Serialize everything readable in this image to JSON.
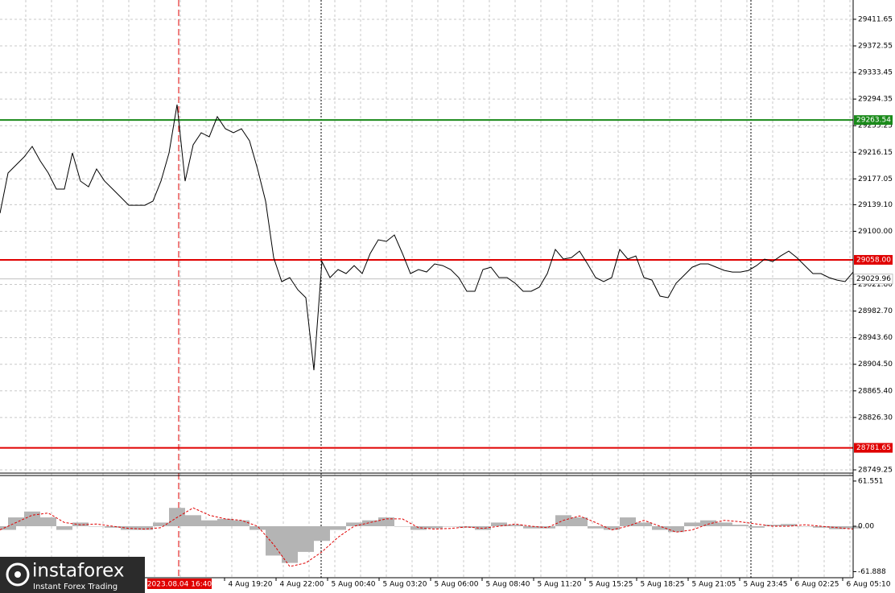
{
  "chart_data": [
    {
      "type": "line",
      "color": "#000000",
      "values": [
        29126.5,
        29185.7,
        29197.5,
        29209.3,
        29224.7,
        29203.4,
        29185.7,
        29162.0,
        29162.0,
        29215.2,
        29173.8,
        29165.5,
        29191.6,
        29173.8,
        29162.0,
        29150.2,
        29138.3,
        29138.3,
        29138.3,
        29144.3,
        29173.8,
        29215.2,
        29286.2,
        29173.8,
        29227.1,
        29244.8,
        29238.9,
        29268.5,
        29250.7,
        29244.8,
        29250.7,
        29233.0,
        29191.6,
        29144.3,
        29061.4,
        29026.0,
        29031.9,
        29014.1,
        29002.3,
        28895.8,
        29055.5,
        29031.9,
        29043.7,
        29037.8,
        29049.6,
        29037.8,
        29067.4,
        29087.5,
        29085.1,
        29094.6,
        29067.4,
        29037.8,
        29043.7,
        29040.2,
        29052.0,
        29049.6,
        29043.7,
        29031.9,
        29011.8,
        29011.8,
        29043.7,
        29047.2,
        29031.9,
        29031.9,
        29023.6,
        29011.8,
        29011.8,
        29017.7,
        29037.8,
        29073.3,
        29059.1,
        29061.4,
        29070.9,
        29052.0,
        29031.9,
        29026.0,
        29031.9,
        29073.3,
        29059.1,
        29063.8,
        29031.9,
        29028.3,
        29004.7,
        29002.3,
        29023.6,
        29035.4,
        29047.2,
        29052.0,
        29052.0,
        29047.2,
        29042.5,
        29040.1,
        29040.1,
        29042.5,
        29049.6,
        29059.1,
        29055.5,
        29063.8,
        29070.9,
        29061.4,
        29049.6,
        29037.8,
        29037.8,
        29031.9,
        29028.3,
        29026.0,
        29040.1
      ],
      "ylim": [
        28744.5,
        29440.0
      ],
      "yticks": [
        {
          "value": 29411.65,
          "label": "29411.65"
        },
        {
          "value": 29372.55,
          "label": "29372.55"
        },
        {
          "value": 29333.45,
          "label": "29333.45"
        },
        {
          "value": 29294.35,
          "label": "29294.35"
        },
        {
          "value": 29255.25,
          "label": "29255.25"
        },
        {
          "value": 29216.15,
          "label": "29216.15"
        },
        {
          "value": 29177.05,
          "label": "29177.05"
        },
        {
          "value": 29139.1,
          "label": "29139.10"
        },
        {
          "value": 29100,
          "label": "29100.00"
        },
        {
          "value": 29021.8,
          "label": "29021.80"
        },
        {
          "value": 28982.7,
          "label": "28982.70"
        },
        {
          "value": 28943.6,
          "label": "28943.60"
        },
        {
          "value": 28904.5,
          "label": "28904.50"
        },
        {
          "value": 28865.4,
          "label": "28865.40"
        },
        {
          "value": 28826.3,
          "label": "28826.30"
        },
        {
          "value": 28749.25,
          "label": "28749.25"
        }
      ],
      "levels": [
        {
          "value": 29263.54,
          "label": "29263.54",
          "color": "#1a8a1a"
        },
        {
          "value": 29058,
          "label": "29058.00",
          "color": "#e00000"
        },
        {
          "value": 28781.65,
          "label": "28781.65",
          "color": "#e00000"
        }
      ],
      "current_price": {
        "value": 29029.96,
        "label": "29029.96",
        "color": "#c0c0c0"
      },
      "cursor_label": "2023.08.04 16:40",
      "time_labels": [
        "4 Aug 19:20",
        "4 Aug 22:00",
        "5 Aug 00:40",
        "5 Aug 03:20",
        "5 Aug 06:00",
        "5 Aug 08:40",
        "5 Aug 11:20",
        "5 Aug 15:25",
        "5 Aug 18:25",
        "5 Aug 21:05",
        "5 Aug 23:45",
        "6 Aug 02:25",
        "6 Aug 05:10"
      ]
    },
    {
      "type": "macd",
      "histogram": {
        "color": "#b4b4b4",
        "values": [
          -5,
          12,
          20,
          12,
          -5,
          5,
          0,
          -2,
          -5,
          -5,
          5,
          25,
          15,
          8,
          10,
          8,
          -5,
          -40,
          -50,
          -35,
          -20,
          -5,
          5,
          8,
          12,
          0,
          -5,
          -3,
          0,
          -2,
          -5,
          5,
          2,
          -3,
          -3,
          15,
          12,
          -3,
          -5,
          12,
          5,
          -5,
          -8,
          5,
          8,
          5,
          2,
          -2,
          2,
          3,
          0,
          -2,
          -4,
          -3
        ]
      },
      "signal": {
        "color": "#e00000",
        "values": [
          -5,
          5,
          15,
          18,
          5,
          2,
          3,
          0,
          -3,
          -4,
          -2,
          12,
          25,
          15,
          10,
          8,
          0,
          -25,
          -55,
          -50,
          -35,
          -15,
          0,
          5,
          10,
          10,
          -2,
          -4,
          -3,
          -1,
          -3,
          0,
          3,
          0,
          -2,
          8,
          14,
          5,
          -5,
          0,
          8,
          0,
          -8,
          -5,
          3,
          8,
          6,
          3,
          0,
          0,
          2,
          0,
          -2,
          -4
        ]
      },
      "ylim": [
        -70.2,
        68.0
      ],
      "yticks": [
        61.551,
        {
          "value": 0,
          "label": "0.00"
        },
        -61.888
      ]
    }
  ],
  "branding": {
    "name": "instaforex",
    "tagline": "Instant Forex Trading"
  }
}
